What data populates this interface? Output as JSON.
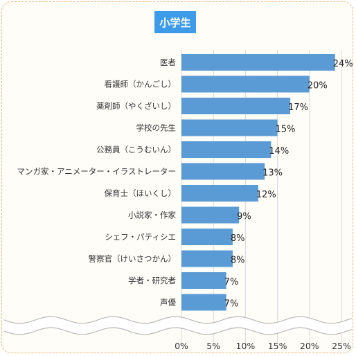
{
  "chart_data": {
    "type": "bar",
    "orientation": "horizontal",
    "title": "小学生",
    "categories": [
      "医者",
      "看護師（かんごし）",
      "薬剤師（やくざいし）",
      "学校の先生",
      "公務員（こうむいん）",
      "マンガ家・アニメーター・イラストレーター",
      "保育士（ほいくし）",
      "小説家・作家",
      "シェフ・パティシエ",
      "警察官（けいさつかん）",
      "学者・研究者",
      "声優"
    ],
    "values": [
      24,
      20,
      17,
      15,
      14,
      13,
      12,
      9,
      8,
      8,
      7,
      7
    ],
    "value_labels": [
      "24%",
      "20%",
      "17%",
      "15%",
      "14%",
      "13%",
      "12%",
      "9%",
      "8%",
      "8%",
      "7%",
      "7%"
    ],
    "xlim": [
      0,
      25
    ],
    "xticks": [
      "0%",
      "5%",
      "10%",
      "15%",
      "20%",
      "25%"
    ],
    "grid": true,
    "colors": {
      "bar": "#5b9bd5",
      "title_badge": "#3e9be9",
      "border": "#f0b27a"
    }
  }
}
